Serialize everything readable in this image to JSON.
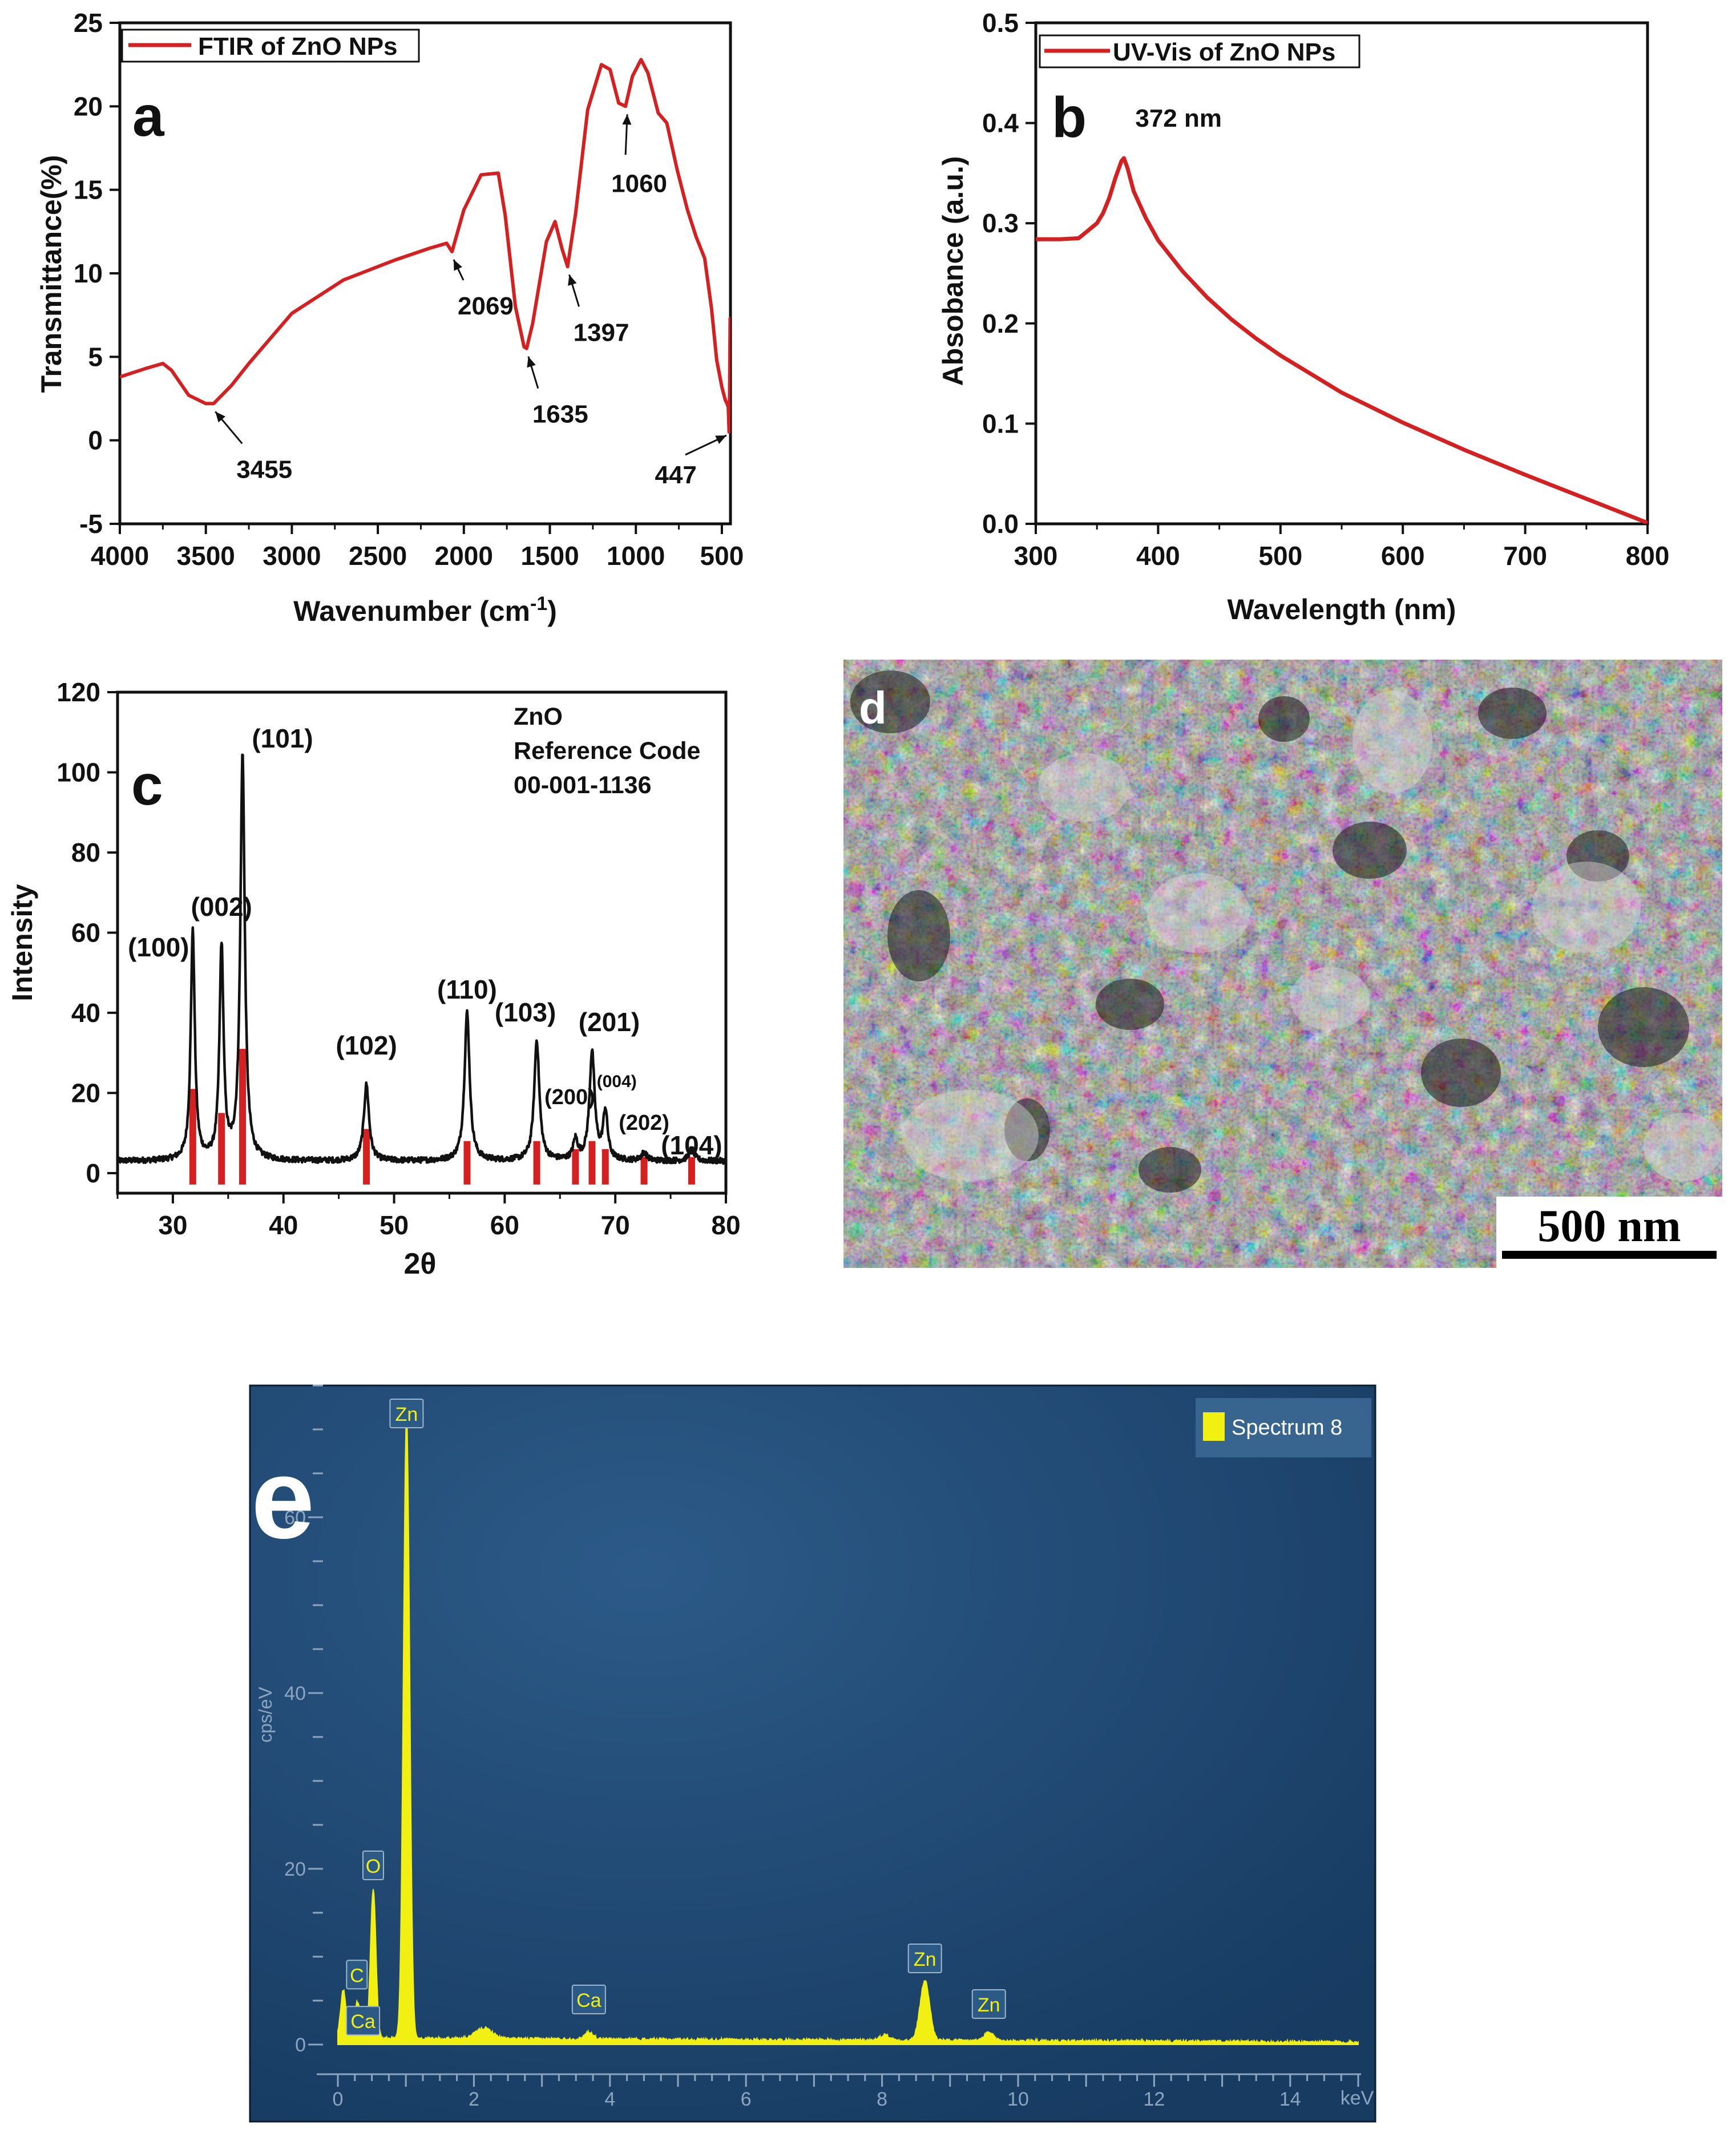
{
  "colors": {
    "red": "#d42020",
    "black": "#111111",
    "eds_bg": "#1f4a76",
    "eds_yellow": "#f2ef12",
    "eds_axis": "#b8c6d6",
    "legend_box": "#3d6a96"
  },
  "panels": {
    "a": {
      "letter": "a"
    },
    "b": {
      "letter": "b"
    },
    "c": {
      "letter": "c"
    },
    "d": {
      "letter": "d",
      "scalebar": "500 nm"
    },
    "e": {
      "letter": "e"
    }
  },
  "chart_data": [
    {
      "id": "a",
      "type": "line",
      "title": "",
      "xlabel": "Wavenumber (cm",
      "xlabel_sup": "-1",
      "xlabel_end": ")",
      "ylabel": "Transmittance(%)",
      "xlim": [
        4000,
        450
      ],
      "ylim": [
        -5,
        25
      ],
      "xticks": [
        4000,
        3500,
        3000,
        2500,
        2000,
        1500,
        1000,
        500
      ],
      "yticks": [
        -5,
        0,
        5,
        10,
        15,
        20,
        25
      ],
      "legend": "top-left",
      "series": [
        {
          "name": "FTIR of ZnO NPs",
          "x": [
            4000,
            3850,
            3750,
            3700,
            3600,
            3500,
            3455,
            3350,
            3250,
            3000,
            2700,
            2400,
            2200,
            2100,
            2069,
            2000,
            1900,
            1800,
            1760,
            1700,
            1650,
            1635,
            1600,
            1520,
            1470,
            1430,
            1397,
            1350,
            1280,
            1200,
            1150,
            1100,
            1060,
            1020,
            970,
            930,
            870,
            820,
            760,
            700,
            650,
            600,
            560,
            530,
            500,
            480,
            470,
            463,
            458,
            455,
            452,
            449,
            447
          ],
          "y": [
            3.8,
            4.3,
            4.6,
            4.2,
            2.7,
            2.2,
            2.2,
            3.3,
            4.6,
            7.6,
            9.6,
            10.8,
            11.5,
            11.8,
            11.3,
            13.8,
            15.9,
            16.0,
            13.5,
            8.0,
            5.6,
            5.5,
            7.0,
            11.9,
            13.1,
            11.5,
            10.4,
            13.6,
            19.8,
            22.5,
            22.2,
            20.2,
            20.0,
            21.8,
            22.8,
            22.0,
            19.6,
            19.0,
            16.2,
            13.8,
            12.2,
            10.9,
            7.9,
            4.8,
            3.2,
            2.4,
            2.2,
            2.0,
            0.5,
            3.0,
            7.3,
            7.0,
            6.8
          ]
        }
      ],
      "annotations": [
        {
          "text": "3455",
          "x": 3455,
          "y": 2.2
        },
        {
          "text": "2069",
          "x": 2069,
          "y": 11.3
        },
        {
          "text": "1635",
          "x": 1635,
          "y": 5.5
        },
        {
          "text": "1397",
          "x": 1397,
          "y": 10.4
        },
        {
          "text": "1060",
          "x": 1060,
          "y": 20.0
        },
        {
          "text": "447",
          "x": 447,
          "y": 0.5
        }
      ]
    },
    {
      "id": "b",
      "type": "line",
      "title": "",
      "xlabel": "Wavelength (nm)",
      "ylabel": "Absobance (a.u.)",
      "xlim": [
        300,
        800
      ],
      "ylim": [
        0.0,
        0.5
      ],
      "xticks": [
        300,
        400,
        500,
        600,
        700,
        800
      ],
      "yticks": [
        0.0,
        0.1,
        0.2,
        0.3,
        0.4,
        0.5
      ],
      "legend": "top-left",
      "series": [
        {
          "name": "UV-Vis of ZnO NPs",
          "x": [
            300,
            320,
            335,
            340,
            345,
            350,
            355,
            360,
            365,
            370,
            372,
            375,
            380,
            390,
            400,
            420,
            440,
            460,
            480,
            500,
            550,
            600,
            650,
            700,
            750,
            800
          ],
          "y": [
            0.284,
            0.284,
            0.285,
            0.29,
            0.295,
            0.3,
            0.31,
            0.325,
            0.345,
            0.362,
            0.365,
            0.355,
            0.332,
            0.305,
            0.283,
            0.252,
            0.226,
            0.204,
            0.185,
            0.168,
            0.131,
            0.101,
            0.074,
            0.049,
            0.025,
            0.001
          ]
        }
      ],
      "annotations": [
        {
          "text": "372 nm",
          "x": 372,
          "y": 0.365
        }
      ]
    },
    {
      "id": "c",
      "type": "line",
      "title": "",
      "xlabel": "2θ",
      "ylabel": "Intensity",
      "xlim": [
        25,
        80
      ],
      "ylim": [
        -5,
        120
      ],
      "xticks": [
        30,
        40,
        50,
        60,
        70,
        80
      ],
      "yticks": [
        0,
        20,
        40,
        60,
        80,
        100,
        120
      ],
      "reference_text": [
        "ZnO",
        "Reference Code",
        "00-001-1136"
      ],
      "series": [
        {
          "name": "XRD",
          "peaks": [
            {
              "pos": 31.8,
              "height": 57,
              "width": 0.22
            },
            {
              "pos": 34.4,
              "height": 53,
              "width": 0.22
            },
            {
              "pos": 36.3,
              "height": 101,
              "width": 0.24
            },
            {
              "pos": 47.5,
              "height": 19,
              "width": 0.28
            },
            {
              "pos": 56.6,
              "height": 37,
              "width": 0.28
            },
            {
              "pos": 62.9,
              "height": 30,
              "width": 0.28
            },
            {
              "pos": 66.4,
              "height": 5,
              "width": 0.25
            },
            {
              "pos": 67.9,
              "height": 27,
              "width": 0.28
            },
            {
              "pos": 69.1,
              "height": 12,
              "width": 0.25
            },
            {
              "pos": 72.6,
              "height": 2,
              "width": 0.3
            },
            {
              "pos": 76.9,
              "height": 3,
              "width": 0.3
            }
          ],
          "baseline": 3
        },
        {
          "name": "Reference",
          "sticks_x": [
            31.8,
            34.4,
            36.3,
            47.5,
            56.6,
            62.9,
            66.4,
            67.9,
            69.1,
            72.6,
            76.9
          ],
          "sticks_y": [
            21,
            15,
            31,
            11,
            8,
            8,
            6,
            8,
            6,
            4,
            4
          ]
        }
      ],
      "peak_labels": [
        {
          "text": "(100)",
          "x": 31.8
        },
        {
          "text": "(002)",
          "x": 34.4
        },
        {
          "text": "(101)",
          "x": 36.3
        },
        {
          "text": "(102)",
          "x": 47.5
        },
        {
          "text": "(110)",
          "x": 56.6
        },
        {
          "text": "(103)",
          "x": 62.9
        },
        {
          "text": "(200)",
          "x": 66.4
        },
        {
          "text": "(201)",
          "x": 67.9
        },
        {
          "text": "(004)",
          "x": 69.1
        },
        {
          "text": "(202)",
          "x": 72.6
        },
        {
          "text": "(104)",
          "x": 76.9
        }
      ]
    },
    {
      "id": "e",
      "type": "area",
      "title": "",
      "xlabel": "keV",
      "ylabel": "cps/eV",
      "xlim": [
        0,
        15
      ],
      "ylim": [
        0,
        75
      ],
      "xticks": [
        0,
        2,
        4,
        6,
        8,
        10,
        12,
        14
      ],
      "yticks": [
        0,
        20,
        40,
        60
      ],
      "legend": "top-right",
      "series": [
        {
          "name": "Spectrum 8",
          "peaks": [
            {
              "pos": 0.08,
              "height": 5.5,
              "width": 0.04
            },
            {
              "pos": 0.28,
              "height": 4.0,
              "width": 0.035
            },
            {
              "pos": 0.35,
              "height": 2.0,
              "width": 0.03
            },
            {
              "pos": 0.52,
              "height": 17.0,
              "width": 0.04
            },
            {
              "pos": 1.01,
              "height": 71.0,
              "width": 0.045
            },
            {
              "pos": 2.15,
              "height": 1.2,
              "width": 0.12
            },
            {
              "pos": 3.69,
              "height": 0.8,
              "width": 0.06
            },
            {
              "pos": 8.04,
              "height": 0.6,
              "width": 0.07
            },
            {
              "pos": 8.63,
              "height": 6.8,
              "width": 0.07
            },
            {
              "pos": 9.57,
              "height": 0.9,
              "width": 0.07
            }
          ]
        }
      ],
      "peak_labels": [
        {
          "text": "Zn",
          "x": 1.01,
          "y": 71.0
        },
        {
          "text": "O",
          "x": 0.52,
          "y": 17.0
        },
        {
          "text": "C",
          "x": 0.28,
          "y": 4.0
        },
        {
          "text": "Ca",
          "x": 0.35,
          "y": 2.0
        },
        {
          "text": "Ca",
          "x": 3.69,
          "y": 0.8
        },
        {
          "text": "Zn",
          "x": 8.63,
          "y": 6.8
        },
        {
          "text": "Zn",
          "x": 9.57,
          "y": 0.9
        }
      ]
    }
  ]
}
